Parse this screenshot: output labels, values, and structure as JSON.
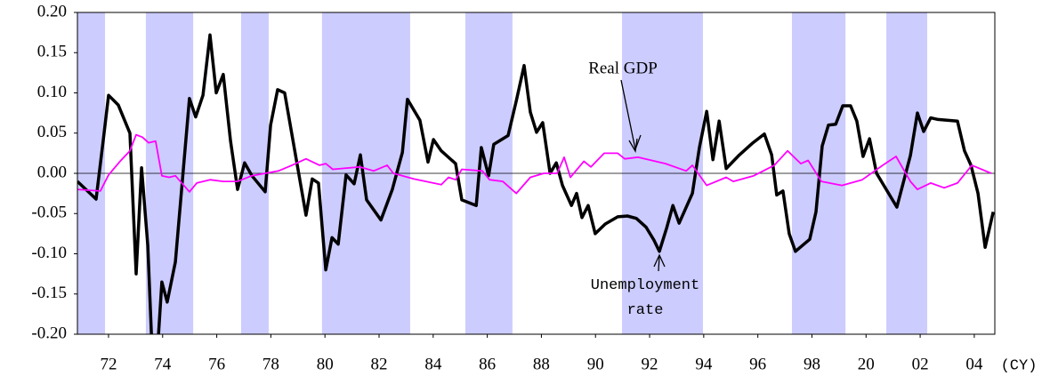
{
  "chart_data": {
    "type": "line",
    "xlim": [
      1970.85,
      2004.76
    ],
    "ylim": [
      -0.2,
      0.2
    ],
    "yticks": [
      {
        "value": 0.2,
        "label": "0.20"
      },
      {
        "value": 0.15,
        "label": "0.15"
      },
      {
        "value": 0.1,
        "label": "0.10"
      },
      {
        "value": 0.05,
        "label": "0.05"
      },
      {
        "value": 0,
        "label": "0.00"
      },
      {
        "value": -0.05,
        "label": "-0.05"
      },
      {
        "value": -0.1,
        "label": "-0.10"
      },
      {
        "value": -0.15,
        "label": "-0.15"
      },
      {
        "value": -0.2,
        "label": "-0.20"
      }
    ],
    "xticks": [
      {
        "value": 1972,
        "label": "72"
      },
      {
        "value": 1974,
        "label": "74"
      },
      {
        "value": 1976,
        "label": "76"
      },
      {
        "value": 1978,
        "label": "78"
      },
      {
        "value": 1980,
        "label": "80"
      },
      {
        "value": 1982,
        "label": "82"
      },
      {
        "value": 1984,
        "label": "84"
      },
      {
        "value": 1986,
        "label": "86"
      },
      {
        "value": 1988,
        "label": "88"
      },
      {
        "value": 1990,
        "label": "90"
      },
      {
        "value": 1992,
        "label": "92"
      },
      {
        "value": 1994,
        "label": "94"
      },
      {
        "value": 1996,
        "label": "96"
      },
      {
        "value": 1998,
        "label": "98"
      },
      {
        "value": 2000,
        "label": "20"
      },
      {
        "value": 2002,
        "label": "02"
      },
      {
        "value": 2004,
        "label": "04"
      }
    ],
    "x_unit_label": "(CY)",
    "shaded_color": "#ccccff",
    "shaded_periods": [
      [
        1970.85,
        1971.87
      ],
      [
        1973.38,
        1975.13
      ],
      [
        1976.9,
        1977.92
      ],
      [
        1979.89,
        1983.15
      ],
      [
        1985.19,
        1986.93
      ],
      [
        1990.98,
        1993.97
      ],
      [
        1997.26,
        1999.24
      ],
      [
        2000.75,
        2002.26
      ]
    ],
    "series": [
      {
        "name": "Unemployment rate",
        "color": "#000000",
        "x": [
          1970.85,
          1971.54,
          1971.8,
          1972.0,
          1972.36,
          1972.79,
          1973.02,
          1973.22,
          1973.45,
          1973.61,
          1973.81,
          1973.97,
          1974.17,
          1974.47,
          1974.99,
          1975.22,
          1975.49,
          1975.75,
          1975.98,
          1976.24,
          1976.51,
          1976.77,
          1977.03,
          1977.3,
          1977.79,
          1977.99,
          1978.25,
          1978.51,
          1979.3,
          1979.53,
          1979.76,
          1980.03,
          1980.26,
          1980.49,
          1980.78,
          1981.08,
          1981.31,
          1981.54,
          1982.07,
          1982.49,
          1982.86,
          1983.05,
          1983.51,
          1983.81,
          1984.01,
          1984.3,
          1984.83,
          1985.06,
          1985.59,
          1985.78,
          1986.05,
          1986.24,
          1986.77,
          1987.07,
          1987.36,
          1987.59,
          1987.82,
          1988.05,
          1988.32,
          1988.55,
          1988.78,
          1989.11,
          1989.3,
          1989.5,
          1989.73,
          1989.99,
          1990.36,
          1990.82,
          1991.18,
          1991.51,
          1991.87,
          1992.16,
          1992.36,
          1992.63,
          1992.86,
          1993.09,
          1993.58,
          1993.84,
          1994.11,
          1994.34,
          1994.57,
          1994.83,
          1995.29,
          1995.82,
          1996.24,
          1996.51,
          1996.7,
          1996.93,
          1997.16,
          1997.39,
          1997.92,
          1998.15,
          1998.38,
          1998.61,
          1998.88,
          1999.14,
          1999.43,
          1999.66,
          1999.89,
          2000.13,
          2000.39,
          2001.14,
          2001.64,
          2001.9,
          2002.13,
          2002.39,
          2002.66,
          2003.38,
          2003.64,
          2003.88,
          2004.14,
          2004.4,
          2004.7
        ],
        "values": [
          -0.01,
          -0.032,
          0.04,
          0.097,
          0.085,
          0.05,
          -0.125,
          0.007,
          -0.09,
          -0.22,
          -0.22,
          -0.135,
          -0.16,
          -0.11,
          0.093,
          0.07,
          0.097,
          0.172,
          0.1,
          0.123,
          0.04,
          -0.02,
          0.013,
          -0.003,
          -0.023,
          0.06,
          0.104,
          0.1,
          -0.052,
          -0.007,
          -0.012,
          -0.12,
          -0.08,
          -0.088,
          -0.002,
          -0.013,
          0.023,
          -0.033,
          -0.058,
          -0.02,
          0.026,
          0.092,
          0.066,
          0.014,
          0.042,
          0.028,
          0.012,
          -0.033,
          -0.04,
          0.032,
          -0.003,
          0.036,
          0.047,
          0.09,
          0.134,
          0.076,
          0.051,
          0.063,
          0.0,
          0.013,
          -0.015,
          -0.04,
          -0.025,
          -0.055,
          -0.04,
          -0.075,
          -0.063,
          -0.054,
          -0.053,
          -0.056,
          -0.067,
          -0.083,
          -0.097,
          -0.068,
          -0.04,
          -0.062,
          -0.025,
          0.032,
          0.077,
          0.017,
          0.065,
          0.006,
          0.022,
          0.038,
          0.049,
          0.023,
          -0.027,
          -0.022,
          -0.075,
          -0.097,
          -0.082,
          -0.048,
          0.034,
          0.06,
          0.061,
          0.084,
          0.084,
          0.065,
          0.021,
          0.043,
          0.0,
          -0.042,
          0.022,
          0.075,
          0.052,
          0.069,
          0.067,
          0.065,
          0.028,
          0.01,
          -0.025,
          -0.092,
          -0.048
        ]
      },
      {
        "name": "Real GDP",
        "color": "#ff00ff",
        "x": [
          1970.85,
          1971.7,
          1972.0,
          1972.43,
          1972.79,
          1973.02,
          1973.25,
          1973.48,
          1973.74,
          1973.97,
          1974.24,
          1974.47,
          1974.99,
          1975.26,
          1975.75,
          1976.24,
          1976.77,
          1977.3,
          1978.28,
          1978.78,
          1979.3,
          1979.8,
          1980.03,
          1980.29,
          1981.28,
          1981.8,
          1982.3,
          1982.53,
          1983.28,
          1984.3,
          1984.57,
          1984.83,
          1985.06,
          1985.82,
          1986.08,
          1986.57,
          1987.07,
          1987.59,
          1988.09,
          1988.58,
          1988.84,
          1989.07,
          1989.57,
          1989.83,
          1990.32,
          1990.82,
          1991.08,
          1991.57,
          1992.59,
          1993.35,
          1993.58,
          1994.11,
          1994.83,
          1995.09,
          1995.85,
          1996.61,
          1997.1,
          1997.59,
          1997.86,
          1998.35,
          1999.11,
          1999.86,
          2000.62,
          2001.11,
          2001.64,
          2001.9,
          2002.39,
          2002.89,
          2003.38,
          2003.91,
          2004.63
        ],
        "values": [
          -0.02,
          -0.022,
          -0.002,
          0.015,
          0.028,
          0.048,
          0.045,
          0.038,
          0.04,
          -0.003,
          -0.005,
          -0.003,
          -0.023,
          -0.012,
          -0.008,
          -0.01,
          -0.01,
          -0.003,
          0.003,
          0.01,
          0.018,
          0.01,
          0.012,
          0.005,
          0.008,
          0.003,
          0.01,
          0.0,
          -0.007,
          -0.014,
          -0.005,
          -0.008,
          0.005,
          0.003,
          -0.008,
          -0.01,
          -0.025,
          -0.005,
          0.0,
          0.0,
          0.02,
          -0.005,
          0.015,
          0.008,
          0.025,
          0.025,
          0.018,
          0.02,
          0.012,
          0.003,
          0.01,
          -0.015,
          -0.005,
          -0.01,
          -0.003,
          0.01,
          0.028,
          0.012,
          0.016,
          -0.01,
          -0.015,
          -0.008,
          0.01,
          0.021,
          -0.01,
          -0.02,
          -0.012,
          -0.018,
          -0.012,
          0.01,
          0.0
        ]
      }
    ]
  }
}
